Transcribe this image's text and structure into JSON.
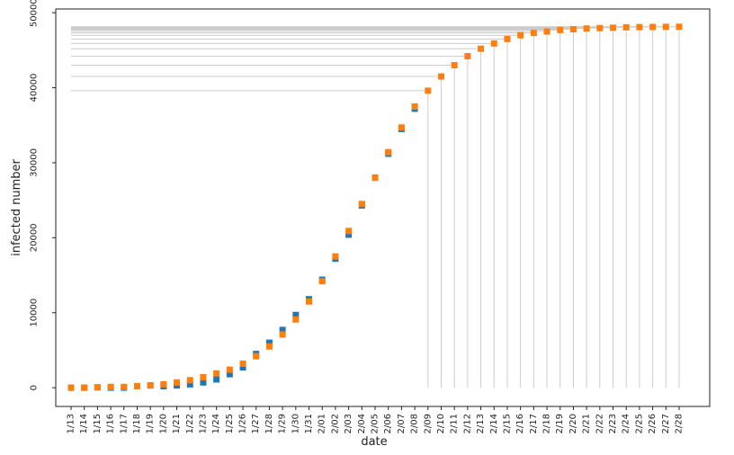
{
  "chart_data": {
    "type": "scatter",
    "xlabel": "date",
    "ylabel": "infected number",
    "ylim": [
      -2500,
      50500
    ],
    "yticks": [
      0,
      10000,
      20000,
      30000,
      40000,
      50000
    ],
    "grid": false,
    "x": [
      "1/13",
      "1/14",
      "1/15",
      "1/16",
      "1/17",
      "1/18",
      "1/19",
      "1/20",
      "1/21",
      "1/22",
      "1/23",
      "1/24",
      "1/25",
      "1/26",
      "1/27",
      "1/28",
      "1/29",
      "1/30",
      "1/31",
      "2/01",
      "2/02",
      "2/03",
      "2/04",
      "2/05",
      "2/06",
      "2/07",
      "2/08",
      "2/09",
      "2/10",
      "2/11",
      "2/12",
      "2/13",
      "2/14",
      "2/15",
      "2/16",
      "2/17",
      "2/18",
      "2/19",
      "2/20",
      "2/21",
      "2/22",
      "2/23",
      "2/24",
      "2/25",
      "2/26",
      "2/27",
      "2/28"
    ],
    "series": [
      {
        "color": "#1f77b4",
        "marker": "square",
        "values": [
          0,
          0,
          50,
          0,
          0,
          200,
          300,
          200,
          300,
          450,
          700,
          1100,
          1800,
          2700,
          4500,
          6000,
          7700,
          9700,
          11800,
          14400,
          17200,
          20400,
          24300,
          28000,
          31200,
          34500,
          37200,
          null,
          null,
          null,
          null,
          null,
          null,
          null,
          null,
          null,
          null,
          null,
          null,
          null,
          null,
          null,
          null,
          null,
          null,
          null,
          null
        ]
      },
      {
        "color": "#ff7f0e",
        "marker": "square",
        "values": [
          0,
          0,
          50,
          100,
          100,
          200,
          300,
          450,
          700,
          1000,
          1400,
          1900,
          2400,
          3200,
          4200,
          5500,
          7100,
          9100,
          11500,
          14200,
          17500,
          20900,
          24500,
          28000,
          31400,
          34700,
          37500,
          39600,
          41500,
          43000,
          44200,
          45200,
          45900,
          46500,
          47000,
          47300,
          47500,
          47700,
          47800,
          47900,
          47950,
          48000,
          48050,
          48080,
          48100,
          48120,
          48130
        ]
      }
    ],
    "reference_lines_from": "2/09",
    "reference_line_color": "#cccccc"
  }
}
